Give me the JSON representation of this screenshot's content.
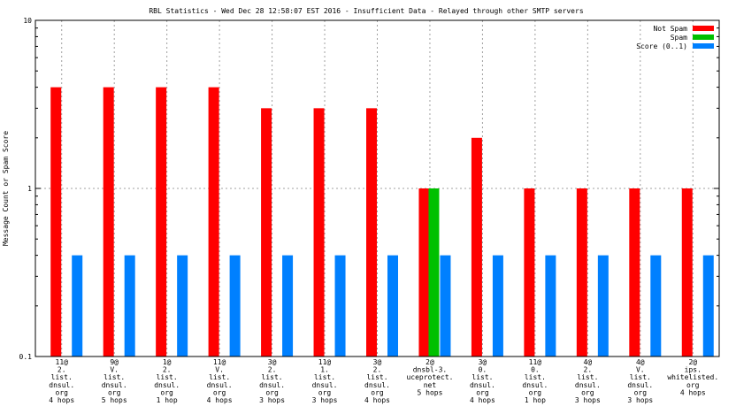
{
  "chart_data": {
    "type": "bar",
    "title": "RBL Statistics - Wed Dec 28 12:58:07 EST 2016 - Insufficient Data - Relayed through other SMTP servers",
    "ylabel": "Message Count or Spam Score",
    "xlabel": "",
    "yscale": "log",
    "ylim": [
      0.1,
      10
    ],
    "yticks": [
      "10",
      "1",
      "0.1"
    ],
    "grid": true,
    "legend_position": "top-right",
    "categories": [
      [
        "11@",
        "2.",
        "list.",
        "dnsul.",
        "org",
        "4 hops"
      ],
      [
        "9@",
        "V.",
        "list.",
        "dnsul.",
        "org",
        "5 hops"
      ],
      [
        "1@",
        "2.",
        "list.",
        "dnsul.",
        "org",
        "1 hop"
      ],
      [
        "11@",
        "V.",
        "list.",
        "dnsul.",
        "org",
        "4 hops"
      ],
      [
        "3@",
        "2.",
        "list.",
        "dnsul.",
        "org",
        "3 hops"
      ],
      [
        "11@",
        "1.",
        "list.",
        "dnsul.",
        "org",
        "3 hops"
      ],
      [
        "3@",
        "2.",
        "list.",
        "dnsul.",
        "org",
        "4 hops"
      ],
      [
        "2@",
        "dnsbl-3.",
        "uceprotect.",
        "net",
        "5 hops"
      ],
      [
        "3@",
        "0.",
        "list.",
        "dnsul.",
        "org",
        "4 hops"
      ],
      [
        "11@",
        "0.",
        "list.",
        "dnsul.",
        "org",
        "1 hop"
      ],
      [
        "4@",
        "2.",
        "list.",
        "dnsul.",
        "org",
        "3 hops"
      ],
      [
        "4@",
        "V.",
        "list.",
        "dnsul.",
        "org",
        "3 hops"
      ],
      [
        "2@",
        "ips.",
        "whitelisted.",
        "org",
        "4 hops"
      ]
    ],
    "series": [
      {
        "name": "Not Spam",
        "color": "#ff0000",
        "values": [
          4,
          4,
          4,
          4,
          3,
          3,
          3,
          1,
          2,
          1,
          1,
          1,
          1
        ]
      },
      {
        "name": "Spam",
        "color": "#00c000",
        "values": [
          0,
          0,
          0,
          0,
          0,
          0,
          0,
          1,
          0,
          0,
          0,
          0,
          0
        ]
      },
      {
        "name": "Score (0..1)",
        "color": "#0080ff",
        "values": [
          0.4,
          0.4,
          0.4,
          0.4,
          0.4,
          0.4,
          0.4,
          0.4,
          0.4,
          0.4,
          0.4,
          0.4,
          0.4
        ]
      }
    ]
  }
}
